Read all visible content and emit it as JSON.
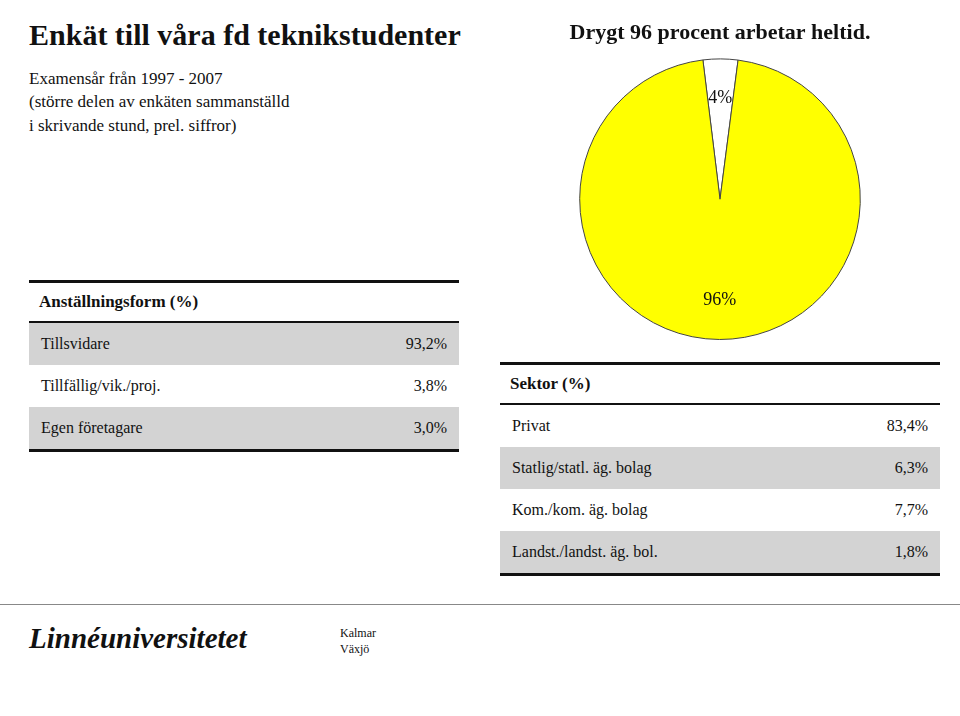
{
  "title": "Enkät till våra fd teknikstudenter",
  "subtitle": [
    "Examensår från 1997 - 2007",
    "(större delen av enkäten sammanställd",
    "i skrivande stund, prel. siffror)"
  ],
  "annotations": [
    "Linnéuniversitetet",
    "Kalmar\nVäxjö"
  ],
  "chart_data": [
    {
      "type": "pie",
      "title": "Drygt 96 procent arbetar heltid.",
      "values": [
        4,
        96
      ],
      "value_labels": [
        "4%",
        "96%"
      ],
      "colors": [
        "#ffffff",
        "#ffff00"
      ],
      "data_labels": true
    },
    {
      "type": "table",
      "title": "Anställningsform (%)",
      "categories": [
        "Tillsvidare",
        "Tillfällig/vik./proj.",
        "Egen företagare"
      ],
      "values": [
        93.2,
        3.8,
        3.0
      ],
      "value_labels": [
        "93,2%",
        "3,8%",
        "3,0%"
      ],
      "colors": [
        "#d3d3d3",
        "#ffffff",
        "#d3d3d3"
      ]
    },
    {
      "type": "table",
      "title": "Sektor (%)",
      "categories": [
        "Privat",
        "Statlig/statl. äg. bolag",
        "Kom./kom. äg. bolag",
        "Landst./landst. äg. bol."
      ],
      "values": [
        83.4,
        6.3,
        7.7,
        1.8
      ],
      "value_labels": [
        "83,4%",
        "6,3%",
        "7,7%",
        "1,8%"
      ],
      "colors": [
        "#ffffff",
        "#d3d3d3",
        "#ffffff",
        "#d3d3d3"
      ]
    }
  ]
}
